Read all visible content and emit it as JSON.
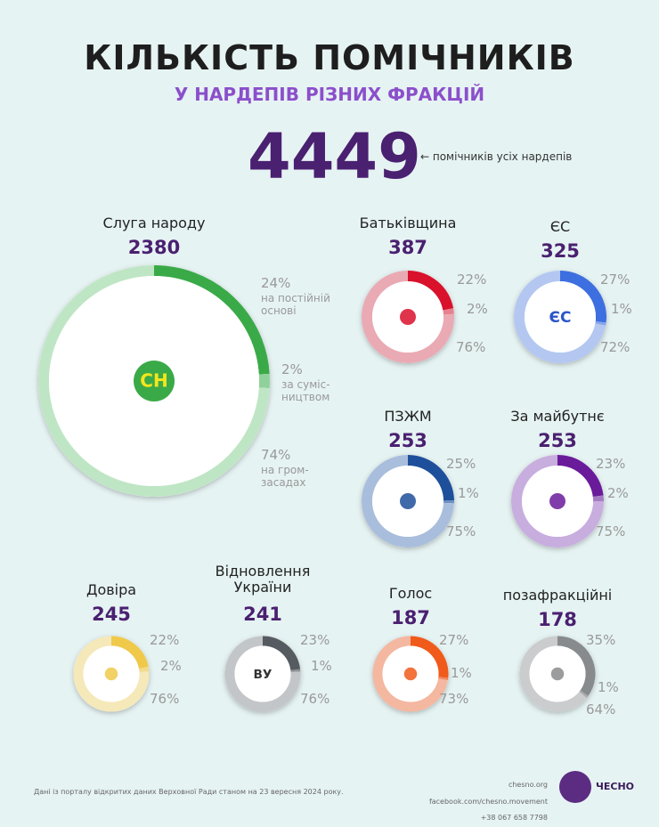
{
  "header": {
    "title": "КІЛЬКІСТЬ ПОМІЧНИКІВ",
    "subtitle": "У НАРДЕПІВ РІЗНИХ ФРАКЦІЙ",
    "total": 4449,
    "total_note": "← помічників усіх нардепів"
  },
  "chart_data": [
    {
      "type": "donut",
      "title": "Слуга народу",
      "total": 2380,
      "logo": "СН",
      "values": [
        24,
        2,
        74
      ],
      "value_labels": [
        "24%",
        "2%",
        "74%"
      ],
      "categories": [
        "на постійній\nоснові",
        "за суміс-\nництвом",
        "на гром-\nзасадах"
      ],
      "colors": [
        "#3aaa48",
        "#8fd19a",
        "#bfe6c4"
      ]
    },
    {
      "type": "donut",
      "title": "Батьківщина",
      "total": 387,
      "values": [
        22,
        2,
        76
      ],
      "value_labels": [
        "22%",
        "2%",
        "76%"
      ],
      "colors": [
        "#d9112b",
        "#e8808e",
        "#e9aab4"
      ]
    },
    {
      "type": "donut",
      "title": "ЄС",
      "total": 325,
      "logo": "ЄС",
      "values": [
        27,
        1,
        72
      ],
      "value_labels": [
        "27%",
        "1%",
        "72%"
      ],
      "colors": [
        "#3d6fe0",
        "#86a6ea",
        "#b3c7f1"
      ]
    },
    {
      "type": "donut",
      "title": "ПЗЖМ",
      "total": 253,
      "values": [
        25,
        1,
        75
      ],
      "value_labels": [
        "25%",
        "1%",
        "75%"
      ],
      "colors": [
        "#1e4f9a",
        "#6f8fc2",
        "#a9bedc"
      ]
    },
    {
      "type": "donut",
      "title": "За майбутнє",
      "total": 253,
      "values": [
        23,
        2,
        75
      ],
      "value_labels": [
        "23%",
        "2%",
        "75%"
      ],
      "colors": [
        "#6a1b9a",
        "#a47cc4",
        "#c8addf"
      ]
    },
    {
      "type": "donut",
      "title": "Довіра",
      "total": 245,
      "values": [
        22,
        2,
        76
      ],
      "value_labels": [
        "22%",
        "2%",
        "76%"
      ],
      "colors": [
        "#f0c94a",
        "#f2da8c",
        "#f5e8b9"
      ]
    },
    {
      "type": "donut",
      "title": "Відновлення\nУкраїни",
      "total": 241,
      "logo": "ВУ",
      "values": [
        23,
        1,
        76
      ],
      "value_labels": [
        "23%",
        "1%",
        "76%"
      ],
      "colors": [
        "#555b60",
        "#8d9296",
        "#c3c6c8"
      ]
    },
    {
      "type": "donut",
      "title": "Голос",
      "total": 187,
      "values": [
        27,
        1,
        73
      ],
      "value_labels": [
        "27%",
        "1%",
        "73%"
      ],
      "colors": [
        "#f05a1a",
        "#f28a60",
        "#f4b7a0"
      ]
    },
    {
      "type": "donut",
      "title": "позафракційні",
      "total": 178,
      "values": [
        35,
        1,
        64
      ],
      "value_labels": [
        "35%",
        "1%",
        "64%"
      ],
      "colors": [
        "#888b8d",
        "#aaacae",
        "#cacccd"
      ]
    }
  ],
  "footer": {
    "source": "Дані із порталу відкритих даних Верховної Ради станом на 23 вересня 2024 року.",
    "contacts": [
      "chesno.org",
      "facebook.com/chesno.movement",
      "+38 067 658 7798"
    ],
    "brand": "ЧЕСНО"
  }
}
